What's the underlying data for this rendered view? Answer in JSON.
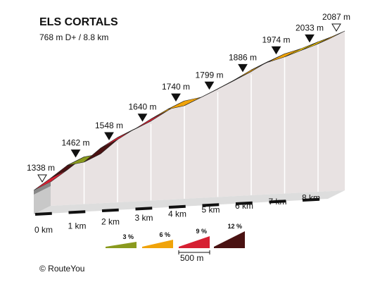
{
  "chart_data": {
    "type": "area",
    "title": "ELS CORTALS",
    "subtitle": "768 m D+ / 8.8 km",
    "x_unit": "km",
    "y_unit": "m",
    "xlim": [
      0,
      8.8
    ],
    "ylim": [
      1338,
      2087
    ],
    "km_ticks": [
      {
        "km": 0,
        "label": "0 km"
      },
      {
        "km": 1,
        "label": "1 km"
      },
      {
        "km": 2,
        "label": "2 km"
      },
      {
        "km": 3,
        "label": "3 km"
      },
      {
        "km": 4,
        "label": "4 km"
      },
      {
        "km": 5,
        "label": "5 km"
      },
      {
        "km": 6,
        "label": "6 km"
      },
      {
        "km": 7,
        "label": "7 km"
      },
      {
        "km": 8,
        "label": "8 km"
      }
    ],
    "elevation_markers": [
      {
        "km": 0,
        "elevation": 1338,
        "label": "1338 m",
        "style": "start"
      },
      {
        "km": 1,
        "elevation": 1462,
        "label": "1462 m",
        "style": "waypoint"
      },
      {
        "km": 2,
        "elevation": 1548,
        "label": "1548 m",
        "style": "waypoint"
      },
      {
        "km": 3,
        "elevation": 1640,
        "label": "1640 m",
        "style": "waypoint"
      },
      {
        "km": 4,
        "elevation": 1740,
        "label": "1740 m",
        "style": "waypoint"
      },
      {
        "km": 5,
        "elevation": 1799,
        "label": "1799 m",
        "style": "waypoint"
      },
      {
        "km": 6,
        "elevation": 1886,
        "label": "1886 m",
        "style": "waypoint"
      },
      {
        "km": 7,
        "elevation": 1974,
        "label": "1974 m",
        "style": "waypoint"
      },
      {
        "km": 8,
        "elevation": 2033,
        "label": "2033 m",
        "style": "waypoint"
      },
      {
        "km": 8.8,
        "elevation": 2087,
        "label": "2087 m",
        "style": "end"
      }
    ],
    "profile": [
      {
        "km": 0,
        "elevation": 1338
      },
      {
        "km": 0.5,
        "elevation": 1398
      },
      {
        "km": 1,
        "elevation": 1462
      },
      {
        "km": 1.5,
        "elevation": 1478
      },
      {
        "km": 2,
        "elevation": 1548
      },
      {
        "km": 2.5,
        "elevation": 1600
      },
      {
        "km": 3,
        "elevation": 1640
      },
      {
        "km": 3.5,
        "elevation": 1692
      },
      {
        "km": 4,
        "elevation": 1740
      },
      {
        "km": 4.5,
        "elevation": 1758
      },
      {
        "km": 5,
        "elevation": 1799
      },
      {
        "km": 5.5,
        "elevation": 1842
      },
      {
        "km": 6,
        "elevation": 1886
      },
      {
        "km": 6.5,
        "elevation": 1935
      },
      {
        "km": 7,
        "elevation": 1974
      },
      {
        "km": 7.5,
        "elevation": 2000
      },
      {
        "km": 8,
        "elevation": 2033
      },
      {
        "km": 8.4,
        "elevation": 2058
      },
      {
        "km": 8.8,
        "elevation": 2087
      }
    ],
    "segment_colors": [
      "#d62032",
      "#4a1212",
      "#8a9a1e",
      "#4a1212",
      "#d62032",
      "#f0a30a",
      "#d62032",
      "#f0a30a",
      "#f0a30a",
      "#ffd000",
      "#d62032",
      "#f0a30a",
      "#f0a30a",
      "#d62032",
      "#f0a30a",
      "#ffd000",
      "#ffd000",
      "#f0a30a"
    ],
    "gradient_legend": [
      {
        "label": "3 %",
        "color": "#8a9a1e"
      },
      {
        "label": "6 %",
        "color": "#f0a30a"
      },
      {
        "label": "9 %",
        "color": "#d62032"
      },
      {
        "label": "12 %",
        "color": "#4a1212"
      }
    ],
    "scale_label": "500 m"
  },
  "copyright": "© RouteYou",
  "colors": {
    "wall": "#e8e2e2",
    "wall_grid": "#ffffff",
    "base": "#c8c8c8",
    "base_front": "#dddddd",
    "outline": "#222222",
    "scale_bar": "#111111",
    "legend_yellow": "#ffd000"
  }
}
